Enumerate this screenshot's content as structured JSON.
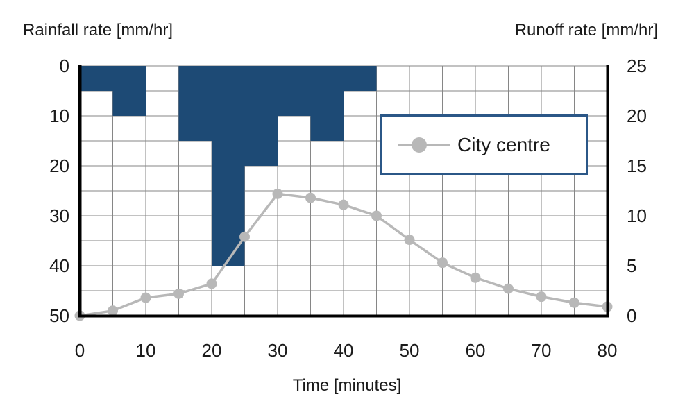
{
  "colors": {
    "bar": "#1d4a75",
    "legend_border": "#2b5787",
    "grid": "#868686",
    "line": "#b8b8b8",
    "axis": "#000000",
    "text": "#1a1a1a"
  },
  "axis_ticks": {
    "left": [
      "0",
      "10",
      "20",
      "30",
      "40",
      "50"
    ],
    "right": [
      "25",
      "20",
      "15",
      "10",
      "5",
      "0"
    ],
    "x": [
      "0",
      "10",
      "20",
      "30",
      "40",
      "50",
      "60",
      "70",
      "80"
    ]
  },
  "legend": {
    "entries": [
      "City centre"
    ],
    "position": "upper right, inside plot"
  },
  "chart_data": {
    "type": "combo",
    "xlabel": "Time [minutes]",
    "x_range": [
      0,
      80
    ],
    "x_grid_step": 5,
    "x_tick_step": 10,
    "grid": true,
    "legend": {
      "entries": [
        "City centre"
      ]
    },
    "series": [
      {
        "name": "Rainfall rate",
        "type": "bar",
        "axis": "left",
        "ylabel": "Rainfall rate [mm/hr]",
        "y_range": [
          0,
          50
        ],
        "y_inverted": true,
        "bar_width_minutes": 5,
        "x_start": [
          0,
          5,
          10,
          15,
          20,
          25,
          30,
          35,
          40
        ],
        "values": [
          5,
          10,
          0,
          15,
          40,
          20,
          10,
          15,
          5
        ]
      },
      {
        "name": "City centre",
        "type": "line",
        "axis": "right",
        "ylabel": "Runoff rate [mm/hr]",
        "y_range": [
          0,
          25
        ],
        "x": [
          0,
          5,
          10,
          15,
          20,
          25,
          30,
          35,
          40,
          45,
          50,
          55,
          60,
          65,
          70,
          75,
          80
        ],
        "values": [
          0,
          0.5,
          1.8,
          2.2,
          3.2,
          7.9,
          12.2,
          11.8,
          11.1,
          10,
          7.6,
          5.3,
          3.8,
          2.7,
          1.9,
          1.3,
          0.9
        ]
      }
    ]
  }
}
